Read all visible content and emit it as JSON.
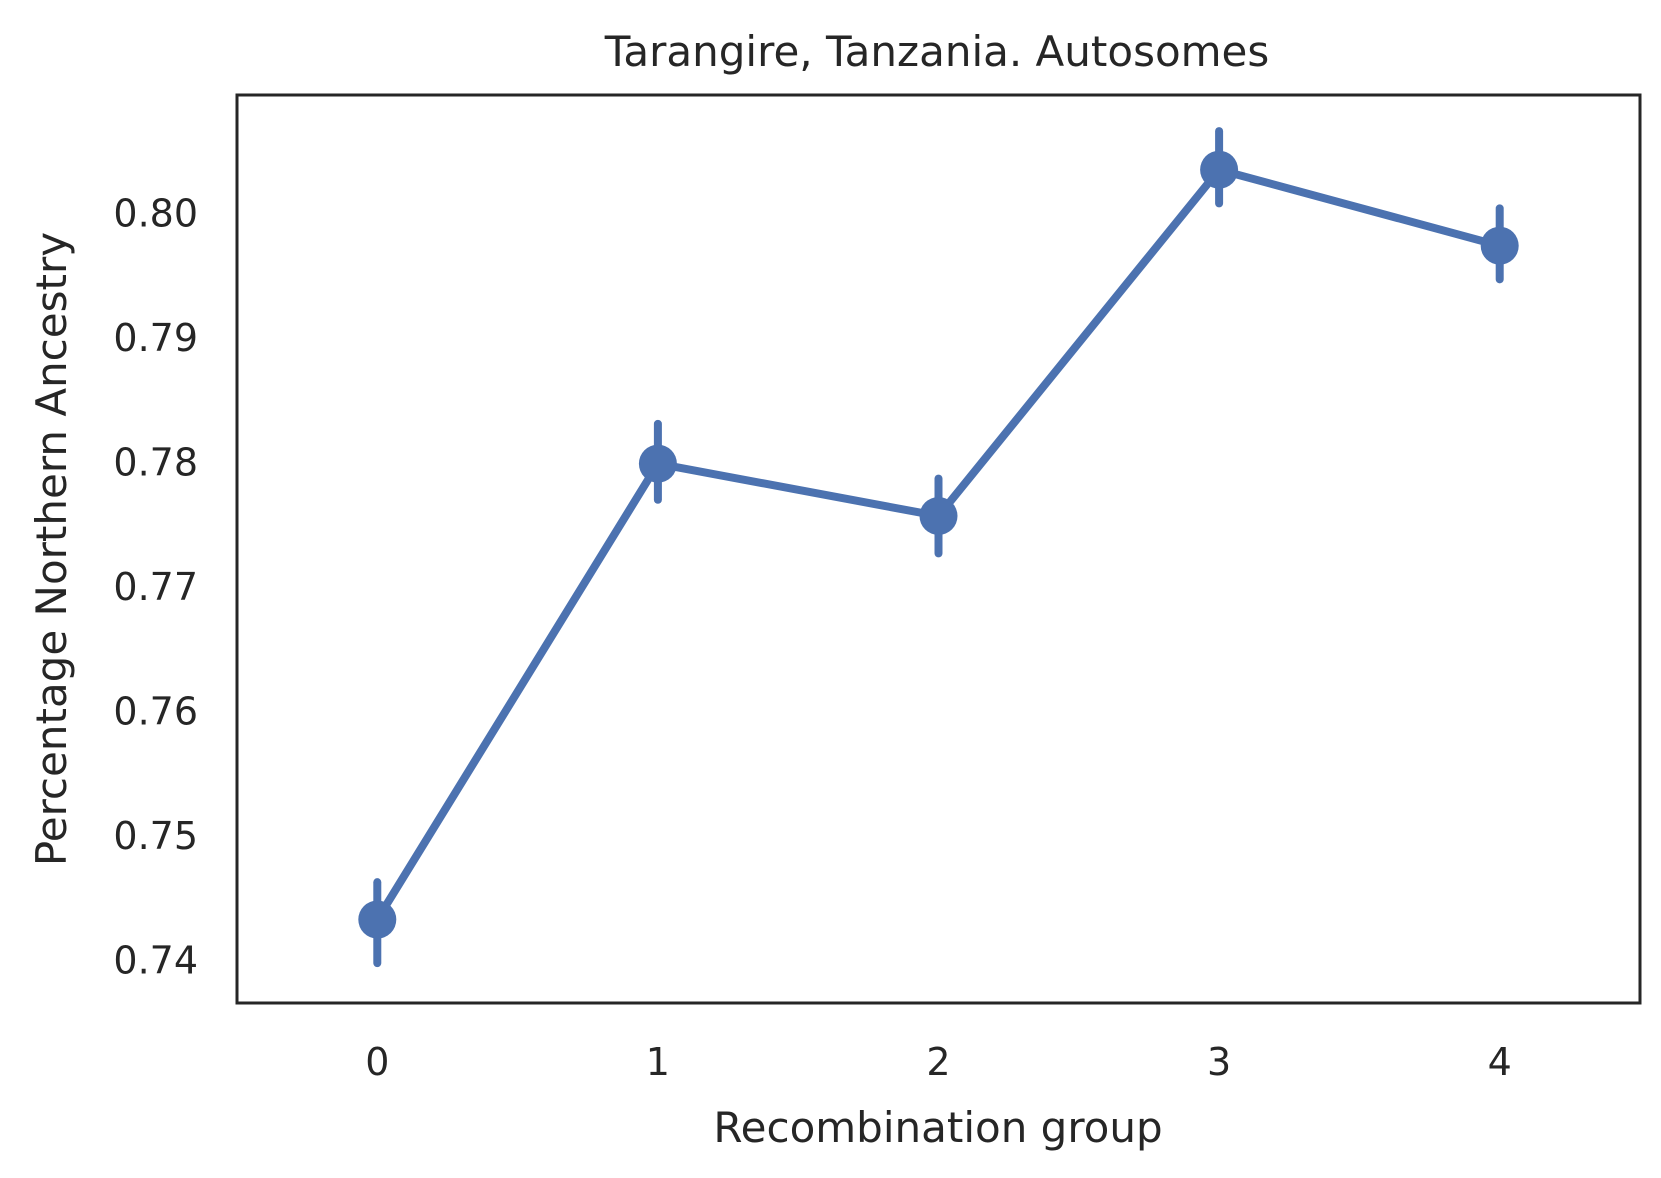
{
  "chart_data": {
    "type": "line",
    "title": "Tarangire, Tanzania. Autosomes",
    "xlabel": "Recombination group",
    "ylabel": "Percentage Northern Ancestry",
    "categories": [
      "0",
      "1",
      "2",
      "3",
      "4"
    ],
    "series": [
      {
        "values": [
          0.7433,
          0.7799,
          0.7757,
          0.8035,
          0.7974
        ],
        "ci_low": [
          0.7398,
          0.777,
          0.7727,
          0.8008,
          0.7947
        ],
        "ci_high": [
          0.7463,
          0.7831,
          0.7787,
          0.8066,
          0.8004
        ],
        "color": "#4c72b0"
      }
    ],
    "yticks": [
      "0.74",
      "0.75",
      "0.76",
      "0.77",
      "0.78",
      "0.79",
      "0.80"
    ],
    "ylim": [
      0.7366,
      0.8095
    ],
    "xlim": [
      -0.5,
      4.5
    ],
    "grid": false,
    "legend": "none"
  }
}
